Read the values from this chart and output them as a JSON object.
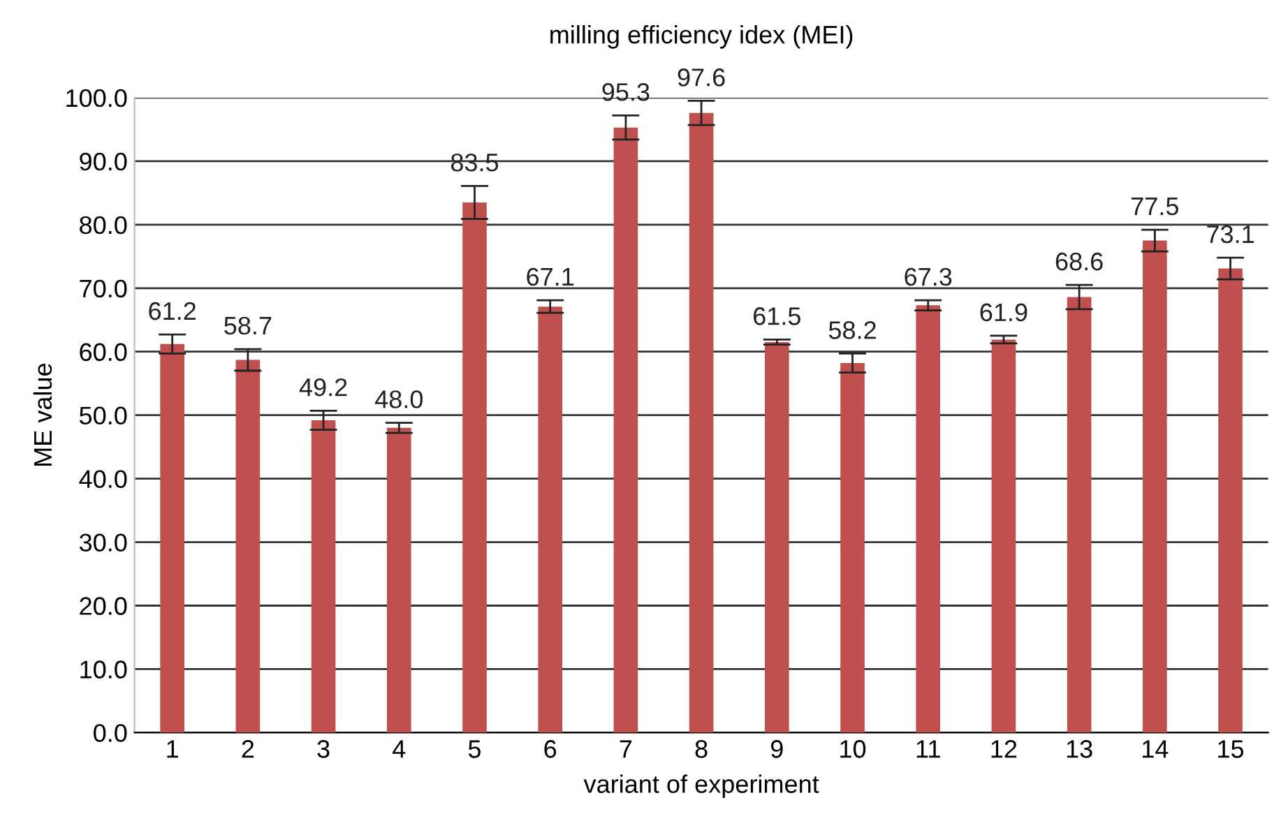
{
  "chart_data": {
    "type": "bar",
    "title": "milling efficiency idex (MEI)",
    "xlabel": "variant of experiment",
    "ylabel": "ME value",
    "categories": [
      "1",
      "2",
      "3",
      "4",
      "5",
      "6",
      "7",
      "8",
      "9",
      "10",
      "11",
      "12",
      "13",
      "14",
      "15"
    ],
    "values": [
      61.2,
      58.7,
      49.2,
      48.0,
      83.5,
      67.1,
      95.3,
      97.6,
      61.5,
      58.2,
      67.3,
      61.9,
      68.6,
      77.5,
      73.1
    ],
    "errors": [
      1.5,
      1.7,
      1.5,
      0.8,
      2.6,
      1.0,
      1.9,
      1.9,
      0.4,
      1.5,
      0.8,
      0.6,
      1.9,
      1.7,
      1.7
    ],
    "color": "#c0504d",
    "ylim": [
      0,
      100
    ],
    "yticks": [
      {
        "value": 0,
        "label": "0.0"
      },
      {
        "value": 10,
        "label": "10.0"
      },
      {
        "value": 20,
        "label": "20.0"
      },
      {
        "value": 30,
        "label": "30.0"
      },
      {
        "value": 40,
        "label": "40.0"
      },
      {
        "value": 50,
        "label": "50.0"
      },
      {
        "value": 60,
        "label": "60.0"
      },
      {
        "value": 70,
        "label": "70.0"
      },
      {
        "value": 80,
        "label": "80.0"
      },
      {
        "value": 90,
        "label": "90.0"
      },
      {
        "value": 100,
        "label": "100.0"
      }
    ],
    "value_labels": [
      "61.2",
      "58.7",
      "49.2",
      "48.0",
      "83.5",
      "67.1",
      "95.3",
      "97.6",
      "61.5",
      "58.2",
      "67.3",
      "61.9",
      "68.6",
      "77.5",
      "73.1"
    ],
    "grid": "y"
  }
}
